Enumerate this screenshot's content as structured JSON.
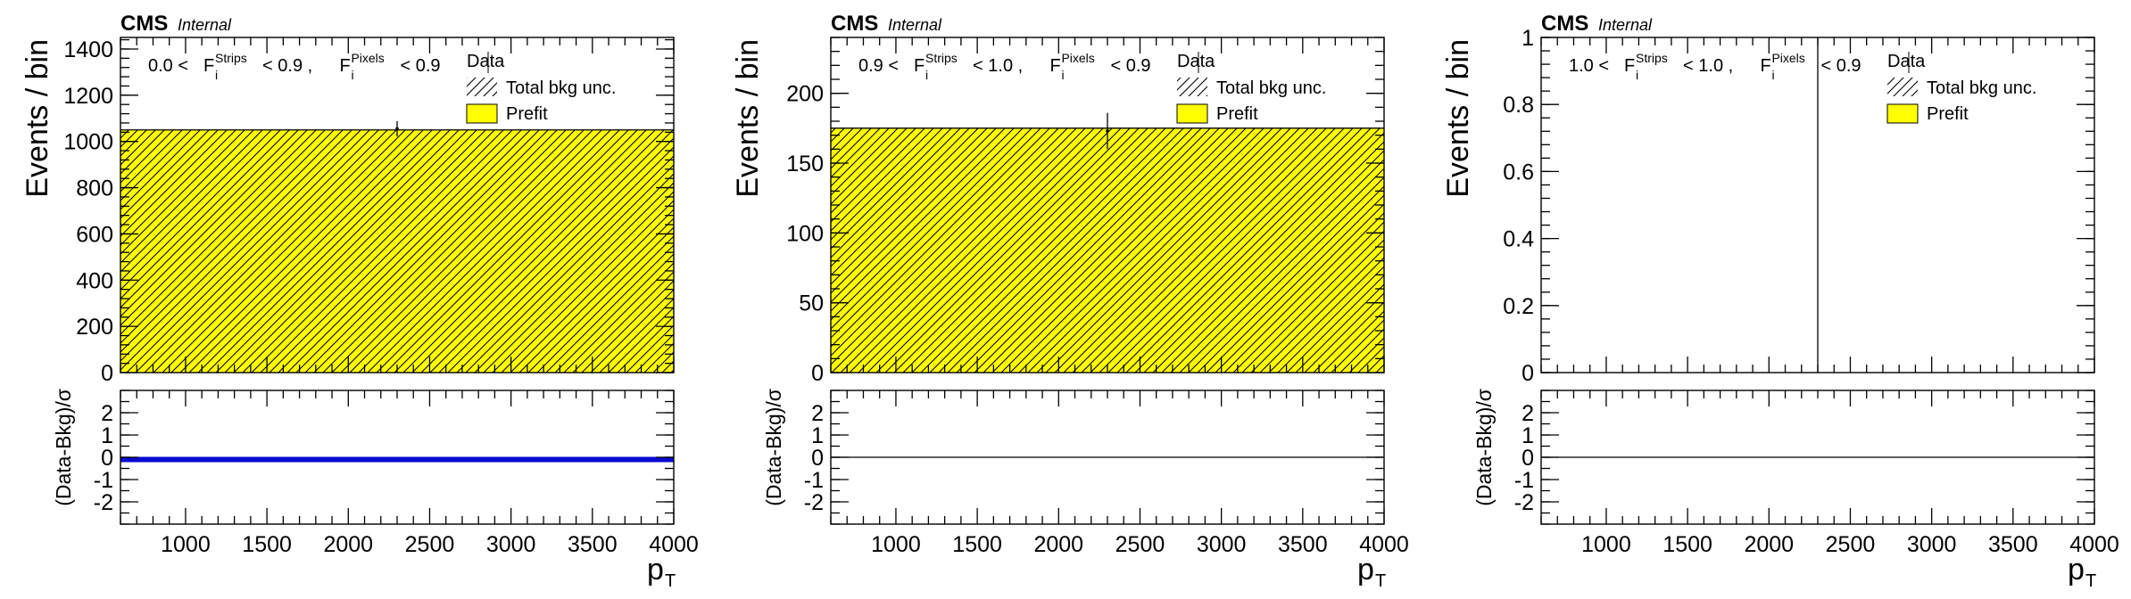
{
  "chart_data": [
    {
      "type": "bar",
      "experiment_label": "CMS",
      "status_label": "Internal",
      "region_label": "0.0 < F_i^Strips < 0.9 , F_i^Pixels < 0.9",
      "region_parts": {
        "low": "0.0 <",
        "var1": "F",
        "sub1": "i",
        "sup1": "Strips",
        "mid": "< 0.9 ,",
        "var2": "F",
        "sub2": "i",
        "sup2": "Pixels",
        "high": "< 0.9"
      },
      "legend": [
        "Data",
        "Total bkg unc.",
        "Prefit"
      ],
      "ylabel": "Events / bin",
      "xlabel": "p",
      "xlabel_sub": "T",
      "ratio_ylabel": "(Data-Bkg)/σ",
      "xlim": [
        600,
        4000
      ],
      "ylim": [
        0,
        1450
      ],
      "ratio_ylim": [
        -3,
        3
      ],
      "xticks": [
        1000,
        1500,
        2000,
        2500,
        3000,
        3500,
        4000
      ],
      "yticks": [
        0,
        200,
        400,
        600,
        800,
        1000,
        1200,
        1400
      ],
      "ratio_yticks": [
        -2,
        -1,
        0,
        1,
        2
      ],
      "background": {
        "name": "Prefit",
        "bins": [
          [
            600,
            4000
          ]
        ],
        "values": [
          1050
        ],
        "color": "#ffff00"
      },
      "data_points": [
        {
          "x": 2300,
          "y": 1055,
          "yerr": 33
        }
      ],
      "ratio": {
        "values": [
          -0.1
        ],
        "color": "#0a0ad2",
        "style": "band"
      }
    },
    {
      "type": "bar",
      "experiment_label": "CMS",
      "status_label": "Internal",
      "region_label": "0.9 < F_i^Strips < 1.0 , F_i^Pixels < 0.9",
      "region_parts": {
        "low": "0.9 <",
        "var1": "F",
        "sub1": "i",
        "sup1": "Strips",
        "mid": "< 1.0 ,",
        "var2": "F",
        "sub2": "i",
        "sup2": "Pixels",
        "high": "< 0.9"
      },
      "legend": [
        "Data",
        "Total bkg unc.",
        "Prefit"
      ],
      "ylabel": "Events / bin",
      "xlabel": "p",
      "xlabel_sub": "T",
      "ratio_ylabel": "(Data-Bkg)/σ",
      "xlim": [
        600,
        4000
      ],
      "ylim": [
        0,
        240
      ],
      "ratio_ylim": [
        -3,
        3
      ],
      "xticks": [
        1000,
        1500,
        2000,
        2500,
        3000,
        3500,
        4000
      ],
      "yticks": [
        0,
        50,
        100,
        150,
        200
      ],
      "ratio_yticks": [
        -2,
        -1,
        0,
        1,
        2
      ],
      "background": {
        "name": "Prefit",
        "bins": [
          [
            600,
            4000
          ]
        ],
        "values": [
          175
        ],
        "color": "#ffff00"
      },
      "data_points": [
        {
          "x": 2300,
          "y": 173,
          "yerr": 13
        }
      ],
      "ratio": {
        "values": [
          0
        ],
        "color": "#000000",
        "style": "line"
      }
    },
    {
      "type": "bar",
      "experiment_label": "CMS",
      "status_label": "Internal",
      "region_label": "1.0 < F_i^Strips < 1.0 , F_i^Pixels < 0.9",
      "region_parts": {
        "low": "1.0 <",
        "var1": "F",
        "sub1": "i",
        "sup1": "Strips",
        "mid": "< 1.0 ,",
        "var2": "F",
        "sub2": "i",
        "sup2": "Pixels",
        "high": "< 0.9"
      },
      "legend": [
        "Data",
        "Total bkg unc.",
        "Prefit"
      ],
      "ylabel": "Events / bin",
      "xlabel": "p",
      "xlabel_sub": "T",
      "ratio_ylabel": "(Data-Bkg)/σ",
      "xlim": [
        600,
        4000
      ],
      "ylim": [
        0,
        1
      ],
      "ratio_ylim": [
        -3,
        3
      ],
      "xticks": [
        1000,
        1500,
        2000,
        2500,
        3000,
        3500,
        4000
      ],
      "yticks": [
        0,
        0.2,
        0.4,
        0.6,
        0.8,
        1
      ],
      "ratio_yticks": [
        -2,
        -1,
        0,
        1,
        2
      ],
      "background": {
        "name": "Prefit",
        "bins": [
          [
            600,
            4000
          ]
        ],
        "values": [
          0
        ],
        "color": "#ffff00"
      },
      "data_points": [
        {
          "x": 2300,
          "y": 0,
          "yerr": 1.0
        }
      ],
      "ratio": {
        "values": [
          0
        ],
        "color": "#000000",
        "style": "line"
      }
    }
  ]
}
